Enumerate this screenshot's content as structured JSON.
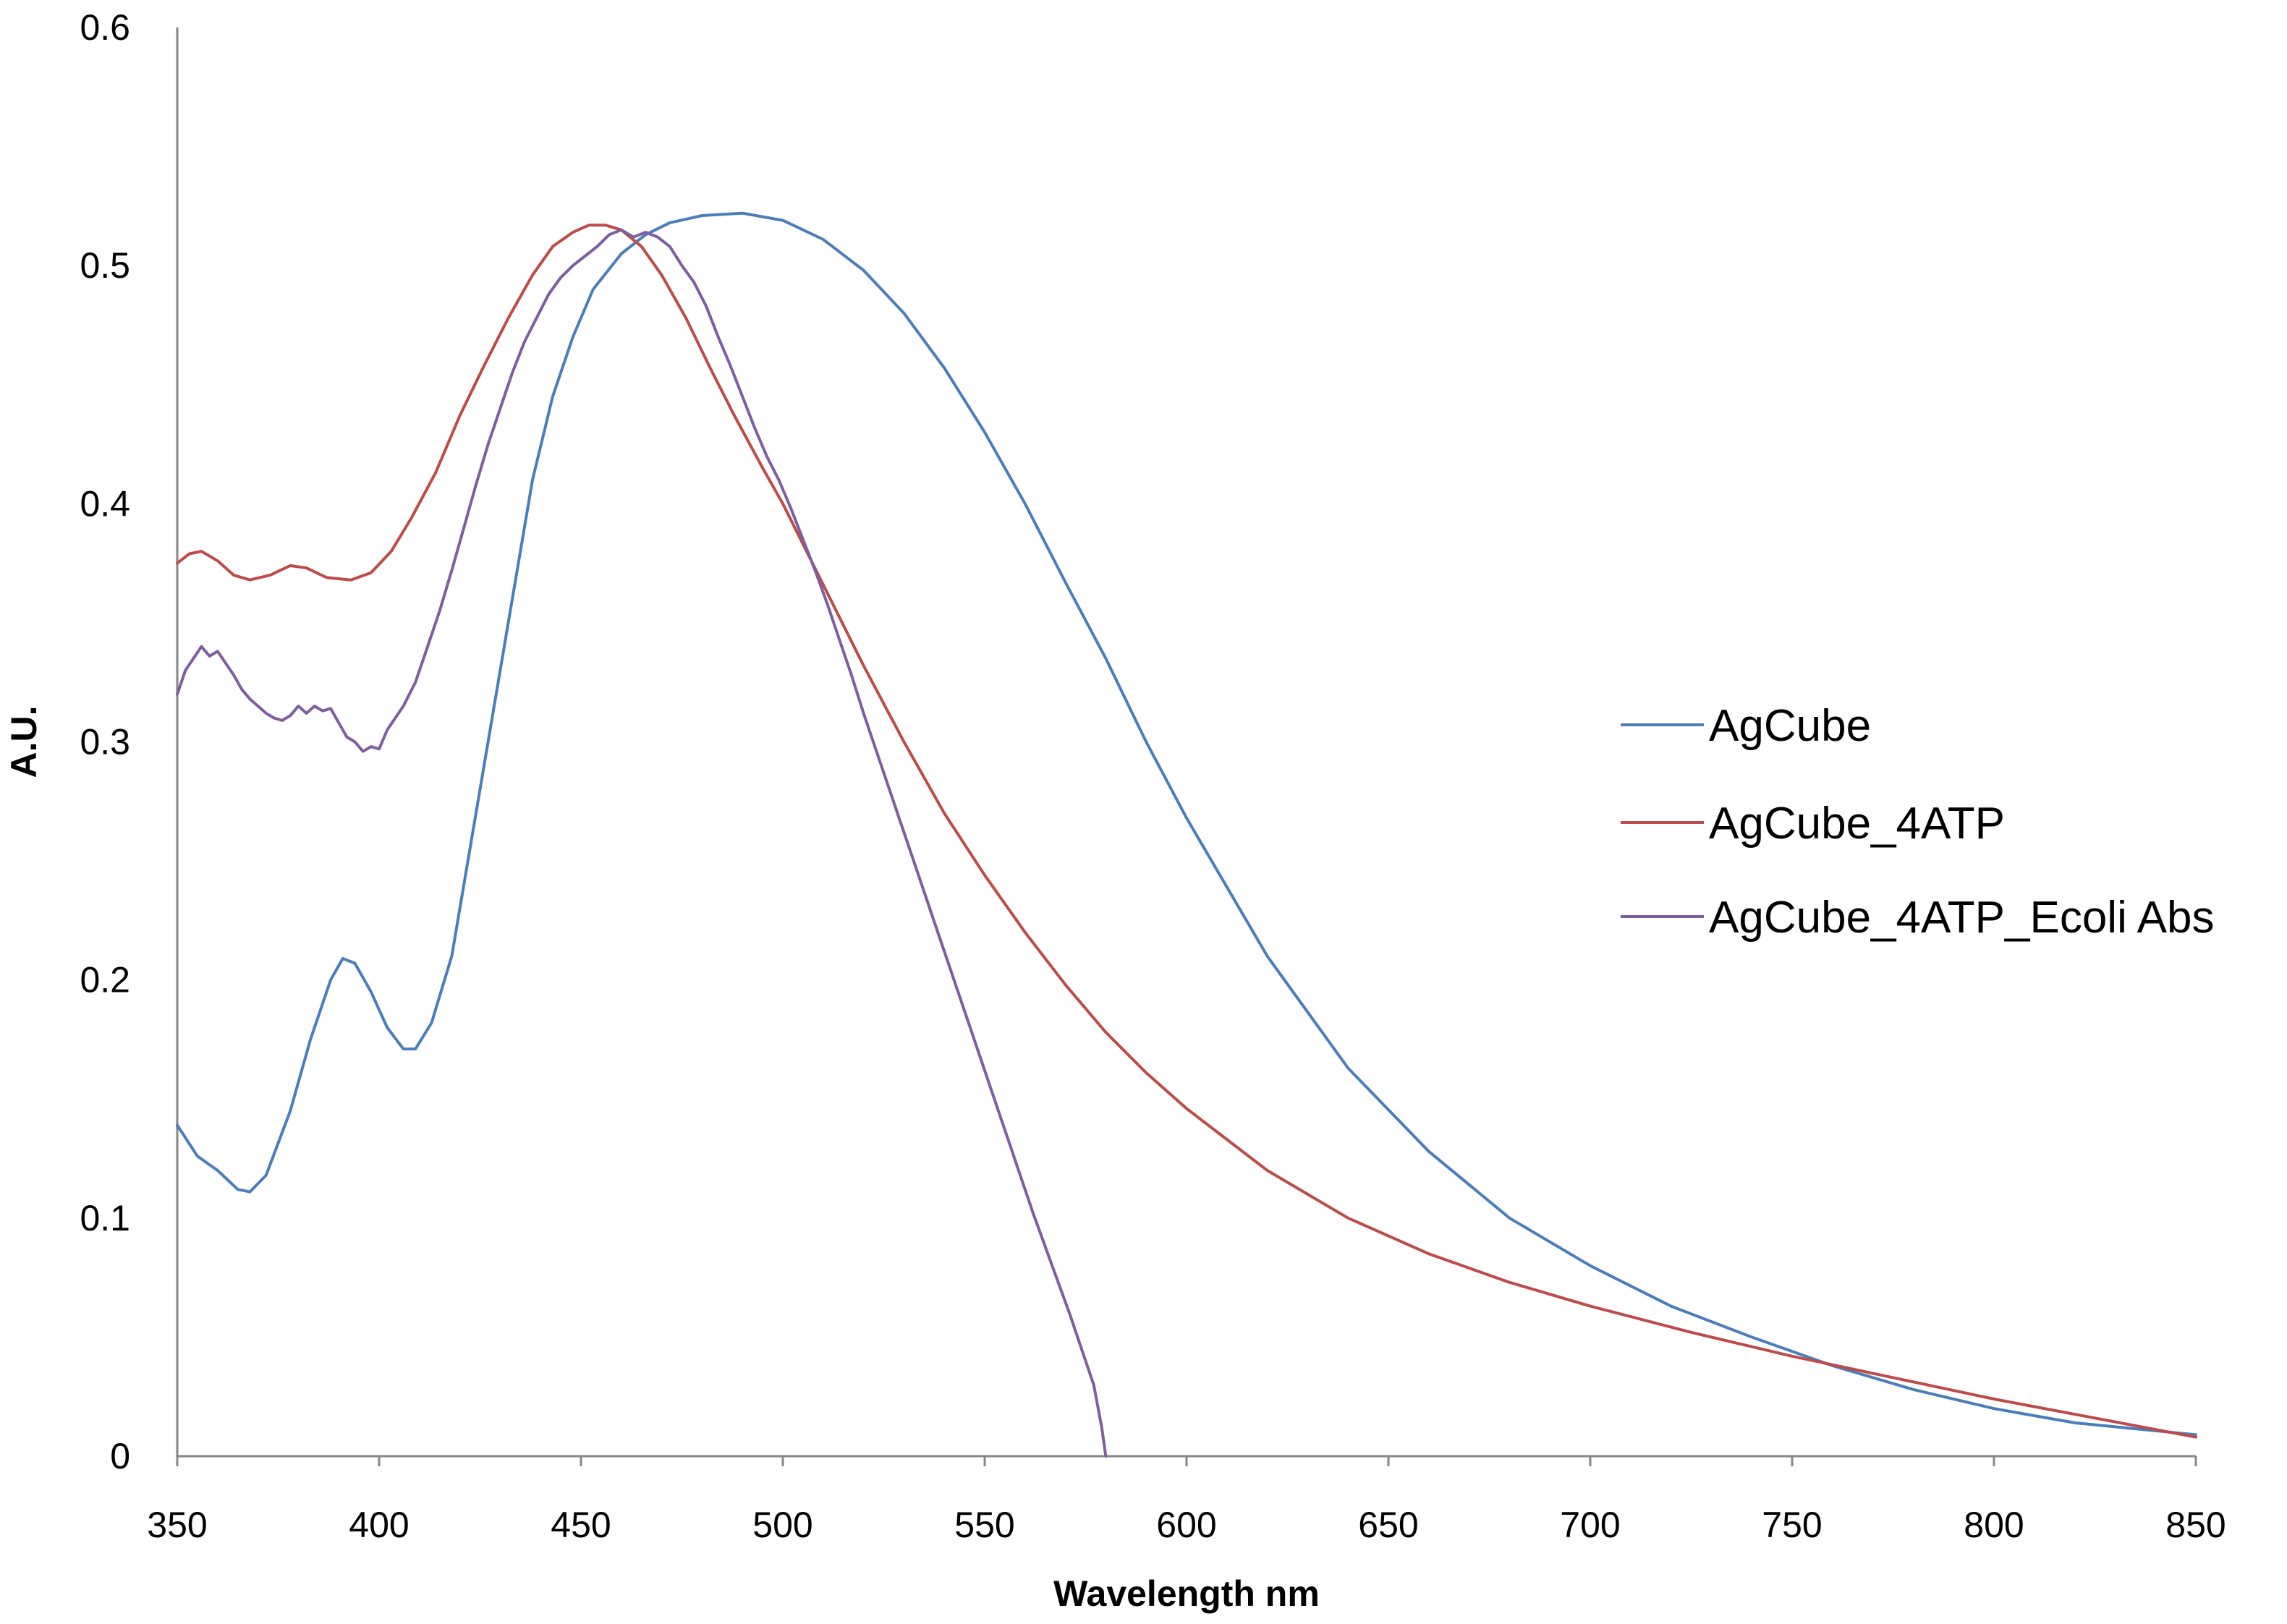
{
  "chart_data": {
    "type": "line",
    "title": "",
    "xlabel": "Wavelength nm",
    "ylabel": "A.U.",
    "xlim": [
      350,
      850
    ],
    "ylim": [
      0,
      0.6
    ],
    "x_ticks": [
      "350",
      "400",
      "450",
      "500",
      "550",
      "600",
      "650",
      "700",
      "750",
      "800",
      "850"
    ],
    "y_ticks": [
      "0",
      "0.1",
      "0.2",
      "0.3",
      "0.4",
      "0.5",
      "0.6"
    ],
    "grid": false,
    "legend_position": "right",
    "series": [
      {
        "name": "AgCube",
        "color": "#4A7EBB",
        "points": [
          [
            350,
            0.139
          ],
          [
            355,
            0.126
          ],
          [
            360,
            0.12
          ],
          [
            365,
            0.112
          ],
          [
            368,
            0.111
          ],
          [
            372,
            0.118
          ],
          [
            378,
            0.145
          ],
          [
            383,
            0.175
          ],
          [
            388,
            0.2
          ],
          [
            391,
            0.209
          ],
          [
            394,
            0.207
          ],
          [
            398,
            0.195
          ],
          [
            402,
            0.18
          ],
          [
            406,
            0.171
          ],
          [
            409,
            0.171
          ],
          [
            413,
            0.182
          ],
          [
            418,
            0.21
          ],
          [
            423,
            0.26
          ],
          [
            428,
            0.31
          ],
          [
            433,
            0.36
          ],
          [
            438,
            0.41
          ],
          [
            443,
            0.445
          ],
          [
            448,
            0.47
          ],
          [
            453,
            0.49
          ],
          [
            460,
            0.505
          ],
          [
            466,
            0.513
          ],
          [
            472,
            0.518
          ],
          [
            480,
            0.521
          ],
          [
            490,
            0.522
          ],
          [
            500,
            0.519
          ],
          [
            510,
            0.511
          ],
          [
            520,
            0.498
          ],
          [
            530,
            0.48
          ],
          [
            540,
            0.457
          ],
          [
            550,
            0.43
          ],
          [
            560,
            0.4
          ],
          [
            570,
            0.367
          ],
          [
            580,
            0.335
          ],
          [
            590,
            0.3
          ],
          [
            600,
            0.268
          ],
          [
            620,
            0.21
          ],
          [
            640,
            0.163
          ],
          [
            660,
            0.128
          ],
          [
            680,
            0.1
          ],
          [
            700,
            0.08
          ],
          [
            720,
            0.063
          ],
          [
            740,
            0.05
          ],
          [
            760,
            0.038
          ],
          [
            780,
            0.028
          ],
          [
            800,
            0.02
          ],
          [
            820,
            0.014
          ],
          [
            850,
            0.009
          ]
        ]
      },
      {
        "name": "AgCube_4ATP",
        "color": "#BE4B48",
        "points": [
          [
            350,
            0.375
          ],
          [
            353,
            0.379
          ],
          [
            356,
            0.38
          ],
          [
            360,
            0.376
          ],
          [
            364,
            0.37
          ],
          [
            368,
            0.368
          ],
          [
            373,
            0.37
          ],
          [
            378,
            0.374
          ],
          [
            382,
            0.373
          ],
          [
            387,
            0.369
          ],
          [
            393,
            0.368
          ],
          [
            398,
            0.371
          ],
          [
            403,
            0.38
          ],
          [
            408,
            0.394
          ],
          [
            414,
            0.413
          ],
          [
            420,
            0.437
          ],
          [
            426,
            0.458
          ],
          [
            432,
            0.478
          ],
          [
            438,
            0.496
          ],
          [
            443,
            0.508
          ],
          [
            448,
            0.514
          ],
          [
            452,
            0.517
          ],
          [
            456,
            0.517
          ],
          [
            460,
            0.515
          ],
          [
            465,
            0.508
          ],
          [
            470,
            0.496
          ],
          [
            476,
            0.478
          ],
          [
            482,
            0.457
          ],
          [
            488,
            0.437
          ],
          [
            495,
            0.415
          ],
          [
            500,
            0.4
          ],
          [
            510,
            0.366
          ],
          [
            520,
            0.332
          ],
          [
            530,
            0.3
          ],
          [
            540,
            0.27
          ],
          [
            550,
            0.244
          ],
          [
            560,
            0.22
          ],
          [
            570,
            0.198
          ],
          [
            580,
            0.178
          ],
          [
            590,
            0.161
          ],
          [
            600,
            0.146
          ],
          [
            620,
            0.12
          ],
          [
            640,
            0.1
          ],
          [
            660,
            0.085
          ],
          [
            680,
            0.073
          ],
          [
            700,
            0.063
          ],
          [
            725,
            0.052
          ],
          [
            750,
            0.042
          ],
          [
            775,
            0.033
          ],
          [
            800,
            0.024
          ],
          [
            825,
            0.016
          ],
          [
            850,
            0.008
          ]
        ]
      },
      {
        "name": "AgCube_4ATP_Ecoli Abs",
        "color": "#7D5FA0",
        "points": [
          [
            350,
            0.32
          ],
          [
            352,
            0.33
          ],
          [
            354,
            0.335
          ],
          [
            356,
            0.34
          ],
          [
            358,
            0.336
          ],
          [
            360,
            0.338
          ],
          [
            362,
            0.333
          ],
          [
            364,
            0.328
          ],
          [
            366,
            0.322
          ],
          [
            368,
            0.318
          ],
          [
            370,
            0.315
          ],
          [
            372,
            0.312
          ],
          [
            374,
            0.31
          ],
          [
            376,
            0.309
          ],
          [
            378,
            0.311
          ],
          [
            380,
            0.315
          ],
          [
            382,
            0.312
          ],
          [
            384,
            0.315
          ],
          [
            386,
            0.313
          ],
          [
            388,
            0.314
          ],
          [
            390,
            0.308
          ],
          [
            392,
            0.302
          ],
          [
            394,
            0.3
          ],
          [
            396,
            0.296
          ],
          [
            398,
            0.298
          ],
          [
            400,
            0.297
          ],
          [
            402,
            0.305
          ],
          [
            404,
            0.31
          ],
          [
            406,
            0.315
          ],
          [
            409,
            0.325
          ],
          [
            412,
            0.34
          ],
          [
            415,
            0.355
          ],
          [
            418,
            0.372
          ],
          [
            421,
            0.39
          ],
          [
            424,
            0.408
          ],
          [
            427,
            0.425
          ],
          [
            430,
            0.44
          ],
          [
            433,
            0.455
          ],
          [
            436,
            0.468
          ],
          [
            439,
            0.478
          ],
          [
            442,
            0.488
          ],
          [
            445,
            0.495
          ],
          [
            448,
            0.5
          ],
          [
            451,
            0.504
          ],
          [
            454,
            0.508
          ],
          [
            457,
            0.513
          ],
          [
            460,
            0.515
          ],
          [
            463,
            0.512
          ],
          [
            466,
            0.514
          ],
          [
            469,
            0.512
          ],
          [
            472,
            0.508
          ],
          [
            475,
            0.5
          ],
          [
            478,
            0.493
          ],
          [
            481,
            0.483
          ],
          [
            484,
            0.47
          ],
          [
            487,
            0.458
          ],
          [
            490,
            0.445
          ],
          [
            493,
            0.432
          ],
          [
            496,
            0.42
          ],
          [
            499,
            0.41
          ],
          [
            502,
            0.398
          ],
          [
            505,
            0.385
          ],
          [
            508,
            0.372
          ],
          [
            511,
            0.358
          ],
          [
            514,
            0.343
          ],
          [
            517,
            0.328
          ],
          [
            520,
            0.312
          ],
          [
            523,
            0.297
          ],
          [
            526,
            0.282
          ],
          [
            529,
            0.267
          ],
          [
            532,
            0.252
          ],
          [
            535,
            0.237
          ],
          [
            538,
            0.222
          ],
          [
            541,
            0.207
          ],
          [
            544,
            0.192
          ],
          [
            547,
            0.177
          ],
          [
            550,
            0.162
          ],
          [
            553,
            0.147
          ],
          [
            556,
            0.132
          ],
          [
            559,
            0.117
          ],
          [
            562,
            0.102
          ],
          [
            565,
            0.088
          ],
          [
            568,
            0.074
          ],
          [
            571,
            0.06
          ],
          [
            574,
            0.045
          ],
          [
            577,
            0.03
          ],
          [
            579,
            0.012
          ],
          [
            580,
            0.0
          ]
        ]
      }
    ]
  }
}
